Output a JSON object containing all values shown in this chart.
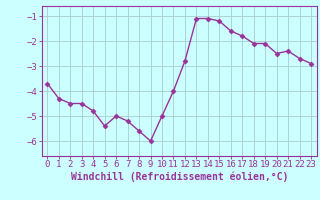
{
  "x": [
    0,
    1,
    2,
    3,
    4,
    5,
    6,
    7,
    8,
    9,
    10,
    11,
    12,
    13,
    14,
    15,
    16,
    17,
    18,
    19,
    20,
    21,
    22,
    23
  ],
  "y": [
    -3.7,
    -4.3,
    -4.5,
    -4.5,
    -4.8,
    -5.4,
    -5.0,
    -5.2,
    -5.6,
    -6.0,
    -5.0,
    -4.0,
    -2.8,
    -1.1,
    -1.1,
    -1.2,
    -1.6,
    -1.8,
    -2.1,
    -2.1,
    -2.5,
    -2.4,
    -2.7,
    -2.9
  ],
  "line_color": "#993399",
  "marker": "D",
  "marker_size": 2.5,
  "bg_color": "#ccffff",
  "grid_color": "#aacccc",
  "xlabel": "Windchill (Refroidissement éolien,°C)",
  "xlabel_color": "#993399",
  "tick_color": "#993399",
  "spine_color": "#993399",
  "ylim": [
    -6.6,
    -0.6
  ],
  "yticks": [
    -6,
    -5,
    -4,
    -3,
    -2,
    -1
  ],
  "xlim": [
    -0.5,
    23.5
  ],
  "xticks": [
    0,
    1,
    2,
    3,
    4,
    5,
    6,
    7,
    8,
    9,
    10,
    11,
    12,
    13,
    14,
    15,
    16,
    17,
    18,
    19,
    20,
    21,
    22,
    23
  ],
  "linewidth": 1.0,
  "tick_fontsize": 6.5,
  "xlabel_fontsize": 7.0
}
